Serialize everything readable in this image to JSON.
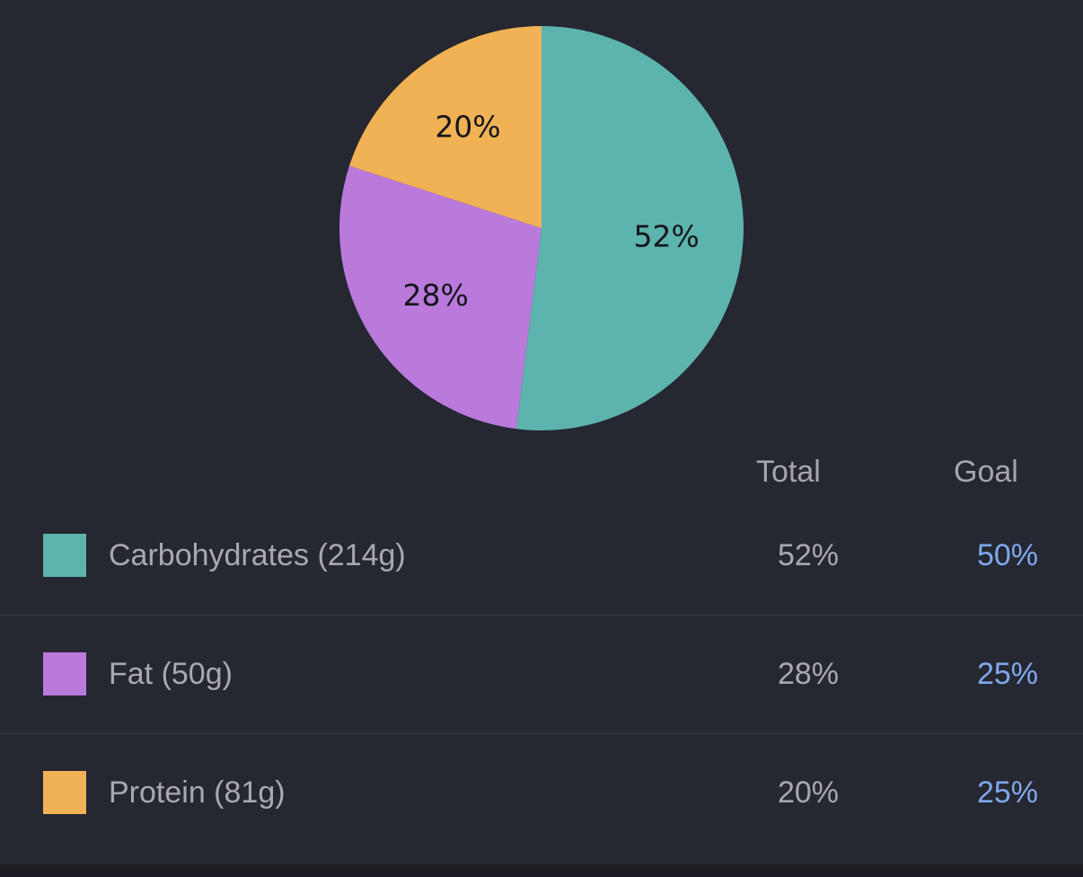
{
  "chart_data": {
    "type": "pie",
    "slices": [
      {
        "label": "52%",
        "value": 52,
        "color": "#5db3ae"
      },
      {
        "label": "28%",
        "value": 28,
        "color": "#b97adc"
      },
      {
        "label": "20%",
        "value": 20,
        "color": "#f0b254"
      }
    ]
  },
  "table": {
    "headers": {
      "total": "Total",
      "goal": "Goal"
    },
    "rows": [
      {
        "label": "Carbohydrates (214g)",
        "total": "52%",
        "goal": "50%",
        "color": "#5db3ae"
      },
      {
        "label": "Fat (50g)",
        "total": "28%",
        "goal": "25%",
        "color": "#b97adc"
      },
      {
        "label": "Protein (81g)",
        "total": "20%",
        "goal": "25%",
        "color": "#f0b254"
      }
    ]
  },
  "colors": {
    "background": "#252731",
    "goal_accent": "#7fa8eb"
  }
}
